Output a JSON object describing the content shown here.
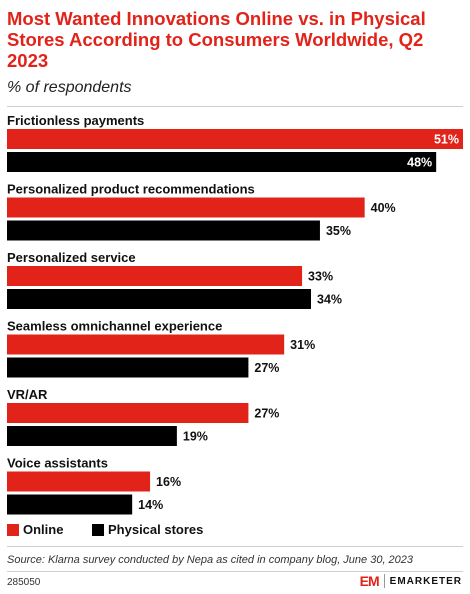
{
  "header": {
    "title": "Most Wanted Innovations Online vs. in Physical Stores According to Consumers Worldwide, Q2 2023",
    "subtitle": "% of respondents"
  },
  "chart_data": {
    "type": "bar",
    "orientation": "horizontal",
    "categories": [
      "Frictionless payments",
      "Personalized product recommendations",
      "Personalized service",
      "Seamless omnichannel experience",
      "VR/AR",
      "Voice assistants"
    ],
    "series": [
      {
        "name": "Online",
        "color": "#e2231a",
        "values": [
          51,
          40,
          33,
          31,
          27,
          16
        ],
        "labels": [
          "51%",
          "40%",
          "33%",
          "31%",
          "27%",
          "16%"
        ]
      },
      {
        "name": "Physical stores",
        "color": "#000000",
        "values": [
          48,
          35,
          34,
          27,
          19,
          14
        ],
        "labels": [
          "48%",
          "35%",
          "34%",
          "27%",
          "19%",
          "14%"
        ]
      }
    ],
    "xlim": [
      0,
      51
    ],
    "legend_placement": "bottom-left",
    "grid": false
  },
  "legend": {
    "online": "Online",
    "physical": "Physical stores"
  },
  "footer": {
    "source": "Source: Klarna survey conducted by Nepa as cited in company blog, June 30, 2023",
    "chart_id": "285050",
    "logo_mark": "EM",
    "logo_text": "EMARKETER"
  }
}
